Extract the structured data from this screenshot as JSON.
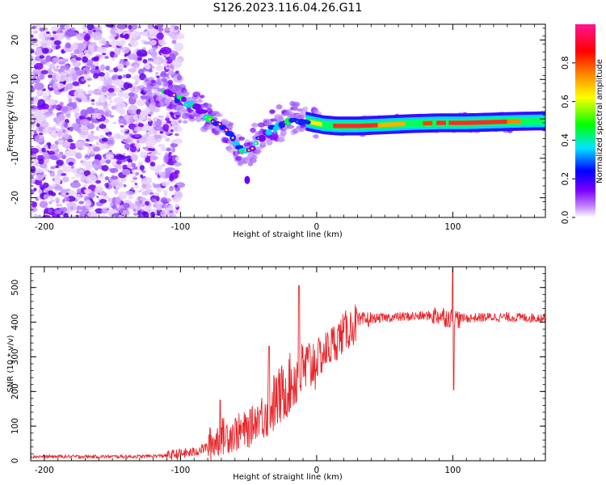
{
  "chart_data": [
    {
      "type": "heatmap",
      "title": "S126.2023.116.04.26.G11",
      "xlabel": "Height of straight line (km)",
      "ylabel": "Frequency (Hz)",
      "xlim": [
        -210,
        168
      ],
      "ylim": [
        -25,
        24
      ],
      "x_ticks": [
        -200,
        -100,
        0,
        100
      ],
      "y_ticks": [
        -20,
        -10,
        0,
        10,
        20
      ],
      "colorbar": {
        "label": "Normalized spectral amplitude",
        "range": [
          0,
          1
        ],
        "ticks": [
          "0.0",
          "0.2",
          "0.4",
          "0.6",
          "0.8"
        ],
        "ticks_values": [
          0,
          0.2,
          0.4,
          0.6,
          0.8
        ],
        "colors": [
          "#ffffff",
          "#7a00ff",
          "#0000ff",
          "#00e5ff",
          "#00ff00",
          "#ffff00",
          "#ff8800",
          "#ff0000",
          "#ff1493"
        ]
      },
      "ridge": {
        "x": [
          -115,
          -105,
          -95,
          -85,
          -78,
          -70,
          -62,
          -55,
          -50,
          -45,
          -38,
          -30,
          -22,
          -15,
          -5,
          5,
          15,
          30,
          50,
          70,
          90,
          110,
          130,
          150,
          168
        ],
        "y": [
          7,
          6,
          4,
          2,
          0,
          -2,
          -5,
          -7.5,
          -8,
          -6,
          -4,
          -2,
          -1,
          0,
          -0.8,
          -1.5,
          -1.8,
          -1.8,
          -1.5,
          -1.2,
          -1,
          -1,
          -0.8,
          -0.6,
          -0.5
        ]
      },
      "grid": false
    },
    {
      "type": "line",
      "xlabel": "Height of straight line (km)",
      "ylabel": "SNR (10 * v/v)",
      "xlim": [
        -210,
        168
      ],
      "ylim": [
        0,
        560
      ],
      "x_ticks": [
        -200,
        -100,
        0,
        100
      ],
      "y_ticks": [
        0,
        100,
        200,
        300,
        400,
        500
      ],
      "color": "#e8262b",
      "trend": {
        "x": [
          -210,
          -130,
          -110,
          -90,
          -80,
          -70,
          -60,
          -50,
          -40,
          -30,
          -20,
          -10,
          0,
          10,
          20,
          30,
          40,
          60,
          90,
          100,
          130,
          168
        ],
        "y": [
          12,
          12,
          15,
          25,
          40,
          70,
          80,
          90,
          140,
          170,
          220,
          260,
          290,
          330,
          370,
          400,
          410,
          415,
          420,
          410,
          415,
          412
        ]
      },
      "spikes": [
        {
          "x": -71,
          "y": 175
        },
        {
          "x": -35,
          "y": 330
        },
        {
          "x": -13,
          "y": 505
        },
        {
          "x": 100,
          "y": 555
        },
        {
          "x": 100.5,
          "y": 205
        }
      ],
      "grid": false
    }
  ]
}
